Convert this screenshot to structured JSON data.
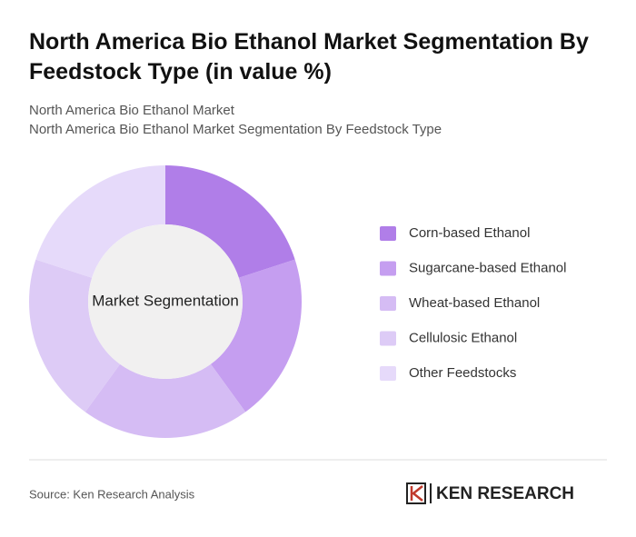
{
  "chart_data": {
    "type": "donut",
    "title": "North America Bio Ethanol Market Segmentation By Feedstock Type (in value %)",
    "subtitle": [
      "North America Bio Ethanol Market",
      "North America Bio Ethanol Market Segmentation By Feedstock Type"
    ],
    "center_label": "Market Segmentation",
    "categories": [
      "Corn-based Ethanol",
      "Sugarcane-based Ethanol",
      "Wheat-based Ethanol",
      "Cellulosic Ethanol",
      "Other Feedstocks"
    ],
    "values": [
      20,
      20,
      20,
      20,
      20
    ],
    "colors": [
      "#b07ee8",
      "#c59ef0",
      "#d5bcf4",
      "#ddcbf6",
      "#e6dafa"
    ],
    "source": "Source: Ken Research Analysis",
    "logo": "KEN RESEARCH"
  }
}
